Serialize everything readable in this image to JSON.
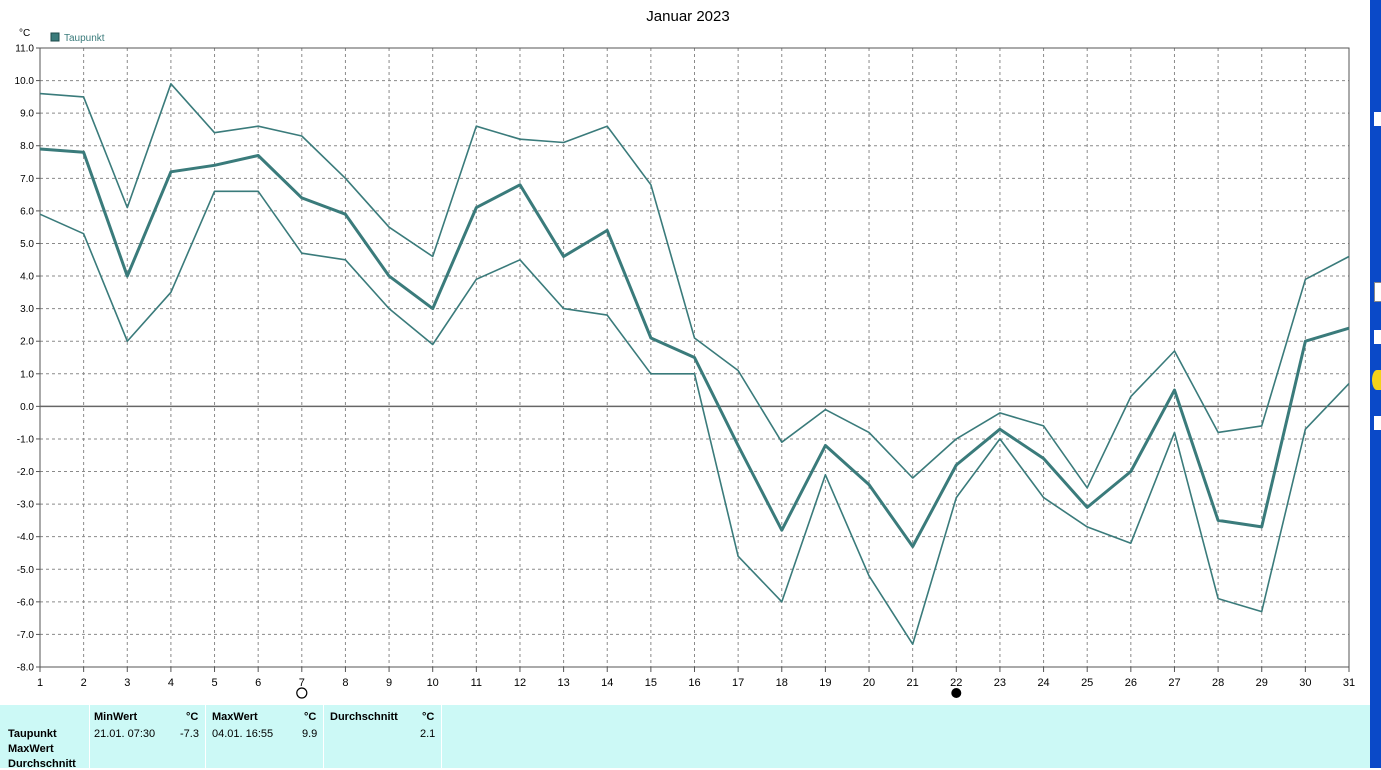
{
  "chart_data": {
    "type": "line",
    "title": "Januar 2023",
    "ylabel": "°C",
    "ylim": [
      -8,
      11
    ],
    "yticks": [
      "11.0",
      "10.0",
      "9.0",
      "8.0",
      "7.0",
      "6.0",
      "5.0",
      "4.0",
      "3.0",
      "2.0",
      "1.0",
      "0.0",
      "-1.0",
      "-2.0",
      "-3.0",
      "-4.0",
      "-5.0",
      "-6.0",
      "-7.0",
      "-8.0"
    ],
    "x": [
      1,
      2,
      3,
      4,
      5,
      6,
      7,
      8,
      9,
      10,
      11,
      12,
      13,
      14,
      15,
      16,
      17,
      18,
      19,
      20,
      21,
      22,
      23,
      24,
      25,
      26,
      27,
      28,
      29,
      30,
      31
    ],
    "grid": true,
    "legend": "top-left",
    "legend_label": "Taupunkt",
    "color": "#3a7b7b",
    "series": [
      {
        "name": "Taupunkt",
        "role": "mean",
        "values": [
          7.9,
          7.8,
          4.0,
          7.2,
          7.4,
          7.7,
          6.4,
          5.9,
          4.0,
          3.0,
          6.1,
          6.8,
          4.6,
          5.4,
          2.1,
          1.5,
          -1.2,
          -3.8,
          -1.2,
          -2.4,
          -4.3,
          -1.8,
          -0.7,
          -1.6,
          -3.1,
          -2.0,
          0.5,
          -3.5,
          -3.7,
          2.0,
          2.4
        ]
      },
      {
        "role": "max",
        "values": [
          9.6,
          9.5,
          6.1,
          9.9,
          8.4,
          8.6,
          8.3,
          7.0,
          5.5,
          4.6,
          8.6,
          8.2,
          8.1,
          8.6,
          6.8,
          2.1,
          1.1,
          -1.1,
          -0.1,
          -0.8,
          -2.2,
          -1.0,
          -0.2,
          -0.6,
          -2.5,
          0.3,
          1.7,
          -0.8,
          -0.6,
          3.9,
          4.6
        ]
      },
      {
        "role": "min",
        "values": [
          5.9,
          5.3,
          2.0,
          3.5,
          6.6,
          6.6,
          4.7,
          4.5,
          3.0,
          1.9,
          3.9,
          4.5,
          3.0,
          2.8,
          1.0,
          1.0,
          -4.6,
          -6.0,
          -2.1,
          -5.2,
          -7.3,
          -2.8,
          -1.0,
          -2.8,
          -3.7,
          -4.2,
          -0.8,
          -5.9,
          -6.3,
          -0.7,
          0.7
        ]
      }
    ],
    "markers": [
      {
        "day": 7,
        "symbol": "open-circle"
      },
      {
        "day": 22,
        "symbol": "filled-circle"
      }
    ]
  },
  "table": {
    "rows": [
      "Taupunkt",
      "MaxWert",
      "Durchschnitt"
    ],
    "min": {
      "header": "MinWert",
      "unit": "°C",
      "time": "21.01.  07:30",
      "value": "-7.3"
    },
    "max": {
      "header": "MaxWert",
      "unit": "°C",
      "time": "04.01.  16:55",
      "value": "9.9"
    },
    "avg": {
      "header": "Durchschnitt",
      "unit": "°C",
      "value": "2.1"
    }
  }
}
